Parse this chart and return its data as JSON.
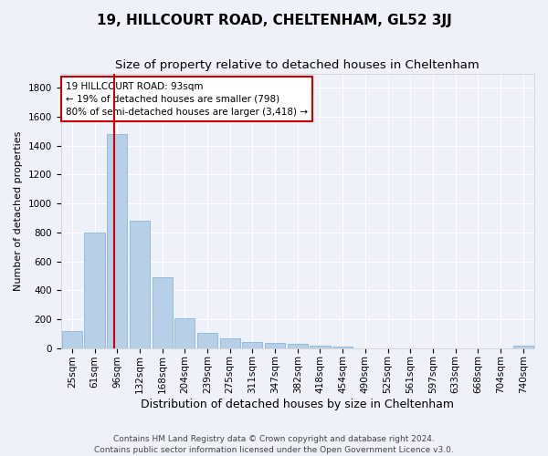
{
  "title": "19, HILLCOURT ROAD, CHELTENHAM, GL52 3JJ",
  "subtitle": "Size of property relative to detached houses in Cheltenham",
  "xlabel": "Distribution of detached houses by size in Cheltenham",
  "ylabel": "Number of detached properties",
  "categories": [
    "25sqm",
    "61sqm",
    "96sqm",
    "132sqm",
    "168sqm",
    "204sqm",
    "239sqm",
    "275sqm",
    "311sqm",
    "347sqm",
    "382sqm",
    "418sqm",
    "454sqm",
    "490sqm",
    "525sqm",
    "561sqm",
    "597sqm",
    "633sqm",
    "668sqm",
    "704sqm",
    "740sqm"
  ],
  "values": [
    120,
    800,
    1480,
    880,
    490,
    205,
    105,
    65,
    42,
    35,
    30,
    20,
    10,
    0,
    0,
    0,
    0,
    0,
    0,
    0,
    15
  ],
  "bar_color": "#b8cfe8",
  "bar_edge_color": "#7aaed6",
  "vline_color": "#cc0000",
  "annotation_box_text": "19 HILLCOURT ROAD: 93sqm\n← 19% of detached houses are smaller (798)\n80% of semi-detached houses are larger (3,418) →",
  "ylim": [
    0,
    1900
  ],
  "yticks": [
    0,
    200,
    400,
    600,
    800,
    1000,
    1200,
    1400,
    1600,
    1800
  ],
  "bg_color": "#eef1f8",
  "plot_bg_color": "#eef1f8",
  "grid_color": "#ffffff",
  "footer_line1": "Contains HM Land Registry data © Crown copyright and database right 2024.",
  "footer_line2": "Contains public sector information licensed under the Open Government Licence v3.0.",
  "title_fontsize": 11,
  "subtitle_fontsize": 9.5,
  "xlabel_fontsize": 9,
  "ylabel_fontsize": 8,
  "tick_fontsize": 7.5,
  "footer_fontsize": 6.5
}
